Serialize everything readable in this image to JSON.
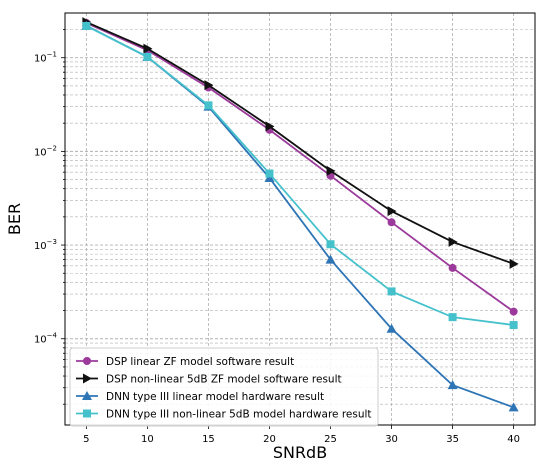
{
  "chart_data": {
    "type": "line",
    "title": "",
    "xlabel": "SNRdB",
    "ylabel": "BER",
    "x": [
      5,
      10,
      15,
      20,
      25,
      30,
      35,
      40
    ],
    "x_ticks": [
      "5",
      "10",
      "15",
      "20",
      "25",
      "30",
      "35",
      "40"
    ],
    "y_scale": "log",
    "y_ticks": [
      {
        "value": 0.1,
        "base": "10",
        "exp": "−1"
      },
      {
        "value": 0.01,
        "base": "10",
        "exp": "−2"
      },
      {
        "value": 0.001,
        "base": "10",
        "exp": "−3"
      },
      {
        "value": 0.0001,
        "base": "10",
        "exp": "−4"
      }
    ],
    "xlim": [
      3.25,
      41.75
    ],
    "ylim": [
      1.2e-05,
      0.3
    ],
    "grid": true,
    "legend_position": "bottom-left",
    "series": [
      {
        "name": "DSP linear ZF model software result",
        "color": "#9b3a9b",
        "marker": "circle",
        "values": [
          0.235,
          0.12,
          0.048,
          0.017,
          0.0055,
          0.00175,
          0.00057,
          0.000195
        ]
      },
      {
        "name": "DSP non-linear 5dB ZF model software result",
        "color": "#111111",
        "marker": "triangle-right",
        "values": [
          0.24,
          0.125,
          0.051,
          0.0185,
          0.0062,
          0.0023,
          0.00108,
          0.00063
        ]
      },
      {
        "name": "DNN type III linear model hardware result",
        "color": "#2e75b6",
        "marker": "triangle-up",
        "values": [
          0.22,
          0.102,
          0.03,
          0.0052,
          0.0007,
          0.000128,
          3.2e-05,
          1.85e-05
        ]
      },
      {
        "name": "DNN type III non-linear 5dB model hardware result",
        "color": "#45c1cc",
        "marker": "square",
        "values": [
          0.218,
          0.102,
          0.031,
          0.0058,
          0.00102,
          0.00032,
          0.00017,
          0.00014
        ]
      }
    ]
  }
}
